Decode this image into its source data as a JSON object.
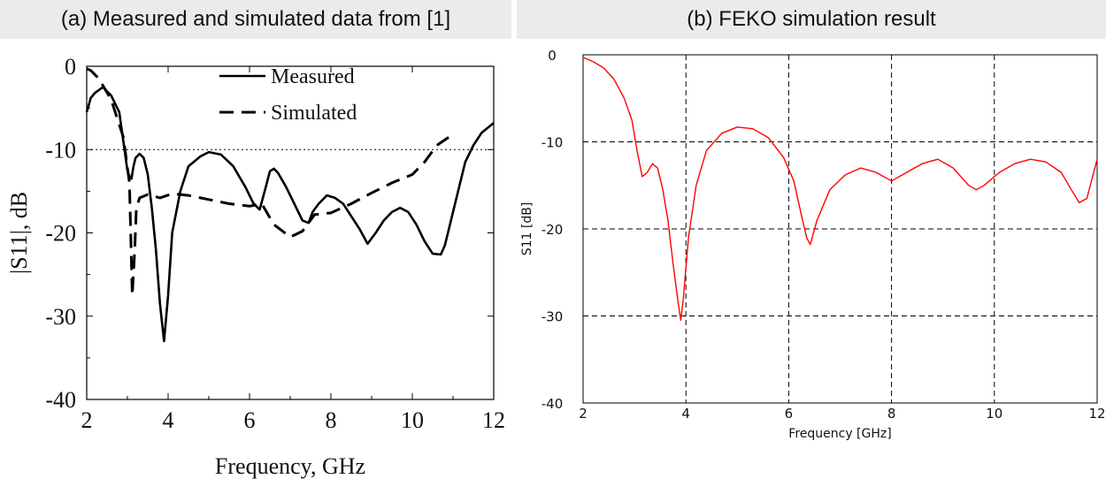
{
  "headers": {
    "a": "(a) Measured and simulated data from [1]",
    "b": "(b) FEKO simulation result"
  },
  "chart_data": [
    {
      "type": "line",
      "xlabel": "Frequency, GHz",
      "ylabel": "|S11|, dB",
      "xlim": [
        2,
        12
      ],
      "ylim": [
        -40,
        0
      ],
      "xticks": [
        2,
        4,
        6,
        8,
        10,
        12
      ],
      "yticks": [
        0,
        -10,
        -20,
        -30,
        -40
      ],
      "grid": false,
      "legend_position": "top-right",
      "reference_line": {
        "y": -10,
        "style": "dotted"
      },
      "series": [
        {
          "name": "Measured",
          "style": "solid",
          "color": "#000000",
          "x": [
            2.0,
            2.1,
            2.2,
            2.4,
            2.6,
            2.8,
            2.9,
            3.0,
            3.05,
            3.1,
            3.15,
            3.2,
            3.3,
            3.4,
            3.5,
            3.6,
            3.7,
            3.8,
            3.9,
            4.0,
            4.1,
            4.3,
            4.5,
            4.8,
            5.0,
            5.3,
            5.6,
            5.9,
            6.1,
            6.25,
            6.4,
            6.5,
            6.6,
            6.7,
            6.9,
            7.1,
            7.3,
            7.45,
            7.55,
            7.7,
            7.9,
            8.1,
            8.3,
            8.5,
            8.7,
            8.9,
            9.1,
            9.3,
            9.5,
            9.7,
            9.9,
            10.1,
            10.3,
            10.5,
            10.7,
            10.8,
            10.9,
            11.1,
            11.3,
            11.5,
            11.7,
            12.0
          ],
          "y": [
            -5.5,
            -3.8,
            -3.2,
            -2.5,
            -3.5,
            -5.5,
            -9.0,
            -12.5,
            -13.2,
            -13.5,
            -12.0,
            -11.0,
            -10.5,
            -11.0,
            -13.0,
            -17.0,
            -22.0,
            -28.5,
            -33.0,
            -27.5,
            -20.0,
            -15.0,
            -12.0,
            -10.8,
            -10.3,
            -10.6,
            -12.0,
            -14.5,
            -16.5,
            -17.2,
            -14.5,
            -12.6,
            -12.3,
            -12.8,
            -14.5,
            -16.5,
            -18.5,
            -18.8,
            -17.5,
            -16.5,
            -15.5,
            -15.8,
            -16.5,
            -18.0,
            -19.5,
            -21.3,
            -20.0,
            -18.5,
            -17.5,
            -17.0,
            -17.5,
            -19.0,
            -21.0,
            -22.5,
            -22.6,
            -21.5,
            -19.5,
            -15.5,
            -11.5,
            -9.5,
            -8.0,
            -6.8
          ]
        },
        {
          "name": "Simulated",
          "style": "dashed",
          "color": "#000000",
          "x": [
            2.0,
            2.1,
            2.3,
            2.6,
            2.9,
            3.05,
            3.12,
            3.18,
            3.22,
            3.3,
            3.5,
            3.8,
            4.1,
            4.5,
            5.0,
            5.5,
            6.0,
            6.3,
            6.6,
            7.0,
            7.3,
            7.6,
            8.0,
            8.5,
            9.0,
            9.5,
            10.0,
            10.3,
            10.6,
            10.9
          ],
          "y": [
            -0.3,
            -0.5,
            -1.5,
            -4.0,
            -8.5,
            -14.0,
            -27.5,
            -22.0,
            -17.0,
            -15.8,
            -15.4,
            -15.8,
            -15.3,
            -15.5,
            -16.0,
            -16.5,
            -16.8,
            -16.5,
            -19.0,
            -20.5,
            -19.8,
            -17.8,
            -17.6,
            -16.5,
            -15.2,
            -14.0,
            -13.0,
            -11.5,
            -9.5,
            -8.5
          ]
        }
      ]
    },
    {
      "type": "line",
      "xlabel": "Frequency [GHz]",
      "ylabel": "S11 [dB]",
      "xlim": [
        2,
        12
      ],
      "ylim": [
        -40,
        0
      ],
      "xticks": [
        2,
        4,
        6,
        8,
        10,
        12
      ],
      "yticks": [
        0,
        -10,
        -20,
        -30,
        -40
      ],
      "grid": true,
      "series": [
        {
          "color": "#ff0000",
          "style": "solid",
          "x": [
            2.0,
            2.2,
            2.4,
            2.6,
            2.8,
            2.95,
            3.05,
            3.15,
            3.25,
            3.35,
            3.45,
            3.55,
            3.65,
            3.75,
            3.85,
            3.9,
            3.95,
            4.05,
            4.2,
            4.4,
            4.7,
            5.0,
            5.3,
            5.6,
            5.9,
            6.1,
            6.25,
            6.35,
            6.42,
            6.55,
            6.8,
            7.1,
            7.4,
            7.7,
            8.0,
            8.3,
            8.6,
            8.9,
            9.2,
            9.5,
            9.65,
            9.8,
            10.1,
            10.4,
            10.7,
            11.0,
            11.3,
            11.5,
            11.65,
            11.8,
            12.0
          ],
          "y": [
            -0.3,
            -0.8,
            -1.5,
            -2.8,
            -5.0,
            -7.5,
            -11.0,
            -14.0,
            -13.5,
            -12.5,
            -13.0,
            -15.5,
            -19.0,
            -24.0,
            -28.5,
            -30.5,
            -28.0,
            -21.0,
            -15.0,
            -11.0,
            -9.0,
            -8.3,
            -8.5,
            -9.5,
            -11.8,
            -14.5,
            -18.5,
            -21.0,
            -21.8,
            -19.0,
            -15.5,
            -13.8,
            -13.0,
            -13.5,
            -14.5,
            -13.5,
            -12.5,
            -12.0,
            -13.0,
            -15.0,
            -15.5,
            -15.0,
            -13.5,
            -12.5,
            -12.0,
            -12.3,
            -13.5,
            -15.5,
            -17.0,
            -16.5,
            -12.0
          ]
        }
      ]
    }
  ]
}
